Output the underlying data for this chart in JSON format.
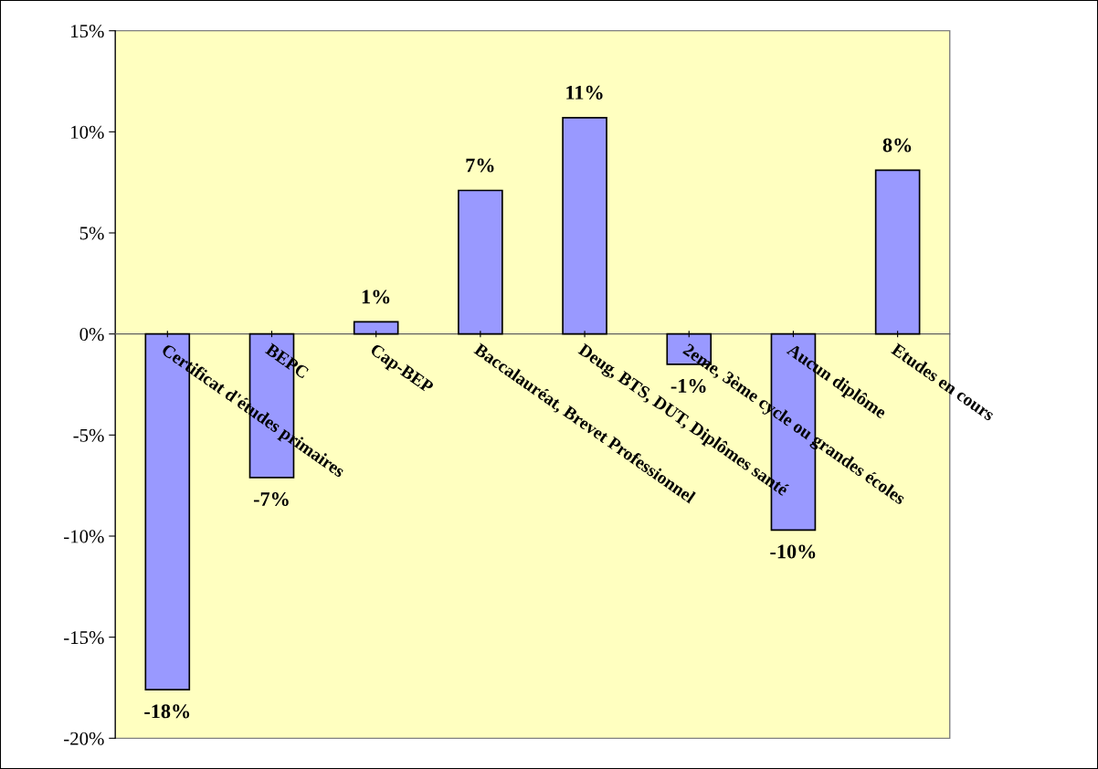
{
  "chart_data": {
    "type": "bar",
    "categories": [
      "Certificat d'études primaires",
      "BEPC",
      "Cap-BEP",
      "Baccalauréat, Brevet Professionnel",
      "Deug, BTS, DUT, Diplômes santé",
      "2eme, 3ème cycle ou grandes écoles",
      "Aucun diplôme",
      "Etudes en cours"
    ],
    "values": [
      -17.6,
      -7.1,
      0.6,
      7.1,
      10.7,
      -1.5,
      -9.7,
      8.1
    ],
    "value_labels": [
      "-18%",
      "-7%",
      "1%",
      "7%",
      "11%",
      "-1%",
      "-10%",
      "8%"
    ],
    "color": "#9999ff",
    "ylim": [
      -20,
      15
    ],
    "yticks": [
      {
        "value": -20,
        "label": "-20%"
      },
      {
        "value": -15,
        "label": "-15%"
      },
      {
        "value": -10,
        "label": "-10%"
      },
      {
        "value": -5,
        "label": "-5%"
      },
      {
        "value": 0,
        "label": "0%"
      },
      {
        "value": 5,
        "label": "5%"
      },
      {
        "value": 10,
        "label": "10%"
      },
      {
        "value": 15,
        "label": "15%"
      }
    ],
    "grid": false,
    "legend": false
  }
}
